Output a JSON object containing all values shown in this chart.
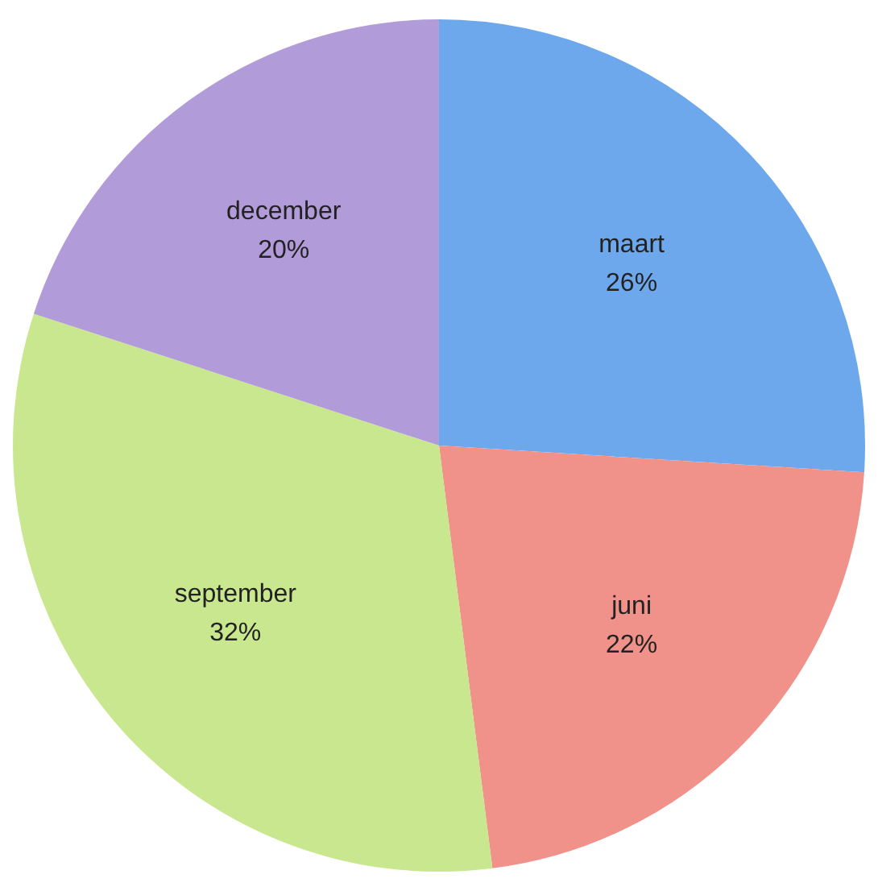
{
  "chart_data": {
    "type": "pie",
    "categories": [
      "maart",
      "juni",
      "september",
      "december"
    ],
    "values": [
      26,
      22,
      32,
      20
    ],
    "colors": [
      "#6ea8ec",
      "#f0918a",
      "#c9e78e",
      "#b29bd9"
    ],
    "value_labels": [
      "26%",
      "22%",
      "32%",
      "20%"
    ],
    "legend": false
  }
}
